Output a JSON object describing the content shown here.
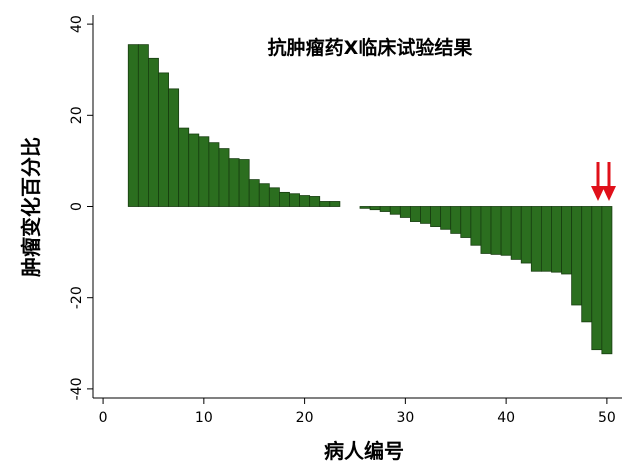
{
  "chart_data": {
    "type": "bar",
    "title": "抗肿瘤药X临床试验结果",
    "x_label": "病人编号",
    "y_label": "肿瘤变化百分比",
    "x": [
      3,
      4,
      5,
      6,
      7,
      8,
      9,
      10,
      11,
      12,
      13,
      14,
      15,
      16,
      17,
      18,
      19,
      20,
      21,
      22,
      23,
      24,
      25,
      26,
      27,
      28,
      29,
      30,
      31,
      32,
      33,
      34,
      35,
      36,
      37,
      38,
      39,
      40,
      41,
      42,
      43,
      44,
      45,
      46,
      47,
      48,
      49,
      50
    ],
    "values": [
      35.5,
      35.5,
      32.5,
      29.3,
      25.8,
      17.2,
      15.9,
      15.3,
      14.0,
      12.7,
      10.5,
      10.3,
      5.9,
      5.0,
      4.1,
      3.1,
      2.8,
      2.4,
      2.2,
      1.1,
      1.1,
      0,
      0,
      -0.4,
      -0.7,
      -1.1,
      -1.7,
      -2.4,
      -3.3,
      -3.7,
      -4.4,
      -5.0,
      -5.9,
      -6.8,
      -8.5,
      -10.3,
      -10.5,
      -10.7,
      -11.6,
      -12.4,
      -14.2,
      -14.2,
      -14.4,
      -14.8,
      -21.6,
      -25.3,
      -31.4,
      -32.3
    ],
    "color": "#2b6e1f",
    "xlim": [
      -1,
      51.5
    ],
    "ylim": [
      -42,
      42
    ],
    "xticks": [
      0,
      10,
      20,
      30,
      40,
      50
    ],
    "yticks": [
      -40,
      -20,
      0,
      20,
      40
    ]
  }
}
